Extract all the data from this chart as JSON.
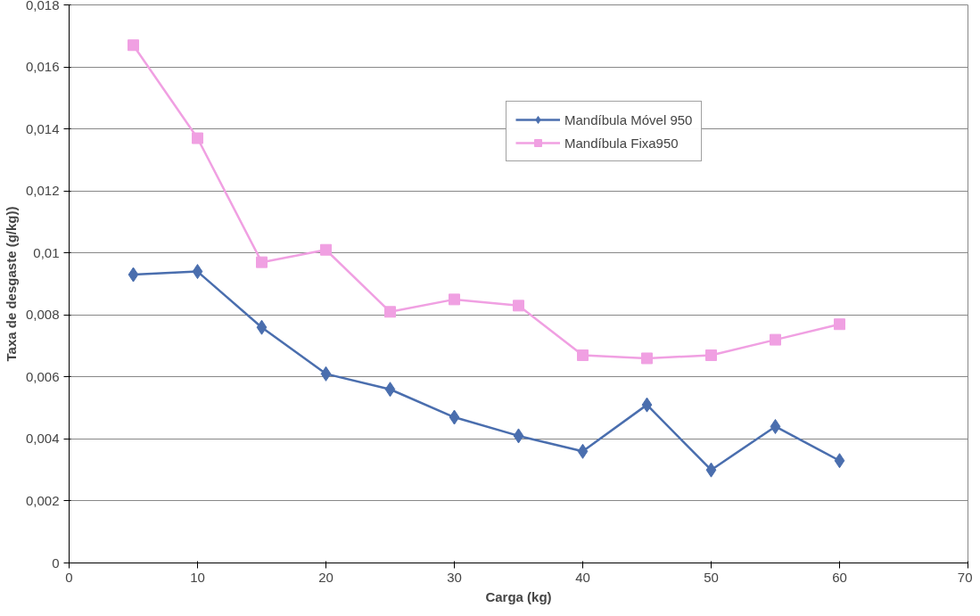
{
  "chart_data": {
    "type": "line",
    "xlabel": "Carga (kg)",
    "ylabel": "Taxa de desgaste (g/kg))",
    "x": [
      5,
      10,
      15,
      20,
      25,
      30,
      35,
      40,
      45,
      50,
      55,
      60
    ],
    "series": [
      {
        "name": "Mandíbula Móvel 950",
        "color": "#4a6eae",
        "marker": "diamond",
        "values": [
          0.0093,
          0.0094,
          0.0076,
          0.0061,
          0.0056,
          0.0047,
          0.0041,
          0.0036,
          0.0051,
          0.003,
          0.0044,
          0.0033
        ]
      },
      {
        "name": "Mandíbula Fixa950",
        "color": "#f0a0e2",
        "marker": "square",
        "values": [
          0.0167,
          0.0137,
          0.0097,
          0.0101,
          0.0081,
          0.0085,
          0.0083,
          0.0067,
          0.0066,
          0.0067,
          0.0072,
          0.0077
        ]
      }
    ],
    "xlim": [
      0,
      70
    ],
    "xticks": [
      0,
      10,
      20,
      30,
      40,
      50,
      60,
      70
    ],
    "ylim": [
      0,
      0.018
    ],
    "yticks": [
      0,
      {
        "value": 0.002,
        "label": "0,002"
      },
      {
        "value": 0.004,
        "label": "0,004"
      },
      {
        "value": 0.006,
        "label": "0,006"
      },
      {
        "value": 0.008,
        "label": "0,008"
      },
      {
        "value": 0.01,
        "label": "0,01"
      },
      {
        "value": 0.012,
        "label": "0,012"
      },
      {
        "value": 0.014,
        "label": "0,014"
      },
      {
        "value": 0.016,
        "label": "0,016"
      },
      {
        "value": 0.018,
        "label": "0,018"
      }
    ],
    "grid": "y",
    "legend": "top right",
    "line_style": "solid"
  }
}
